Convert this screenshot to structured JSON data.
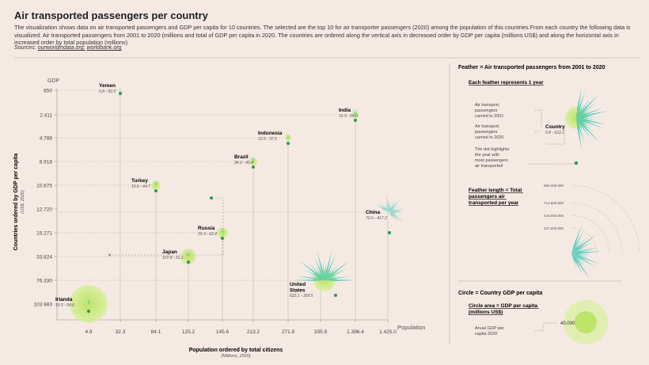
{
  "header": {
    "title": "Air transported passengers per country",
    "description": "The visualization shows data on air transported passengers and GDP per capita for 10 countries. The selected are the top 10 for air transporter passengers (2020) among the population of this countries.From each country the following data is visualized: Air transported passengers from 2001 to 2020 (millions and total of GDP per capita in 2020. The countries are ordered along the vertical axis in decreased order by GDP per capita (millions US$) and along the horizontal axis in  increased order by total population (millions)",
    "sources_label": "Sources:",
    "source_1": "ourworldindata.org;",
    "source_2": "worldbank.org"
  },
  "chart_data": {
    "type": "scatter",
    "title": "Air transported passengers per country",
    "xlabel": "Population ordered by total citizens",
    "xlabel_sub": "(Millions, 2020)",
    "x_axis_end_label": "Population",
    "ylabel": "Countries ordered by GDP per capita",
    "ylabel_sub": "(US$, 2020)",
    "y_axis_top_label": "GDP",
    "x_ticks": [
      "4.9",
      "32.3",
      "84.1",
      "125.2",
      "145.6",
      "213.2",
      "271.9",
      "335.9",
      "1.396.4",
      "1.425.0"
    ],
    "y_ticks": [
      "650",
      "2.411",
      "4.788",
      "8.918",
      "10.675",
      "12.720",
      "15.271",
      "33.824",
      "76.330",
      "103.983"
    ],
    "points": [
      {
        "country": "Yemen",
        "range": "0.8 - 52.0",
        "x_rank": 1,
        "y_rank": 0
      },
      {
        "country": "India",
        "range": "16.9 - 69.0",
        "x_rank": 8,
        "y_rank": 1
      },
      {
        "country": "Indonesia",
        "range": "12.5 - 37.5",
        "x_rank": 6,
        "y_rank": 2
      },
      {
        "country": "Brazil",
        "range": "34.2 - 45.4",
        "x_rank": 5,
        "y_rank": 3
      },
      {
        "country": "Turkey",
        "range": "10.6 - 44.7",
        "x_rank": 2,
        "y_rank": 4
      },
      {
        "country": "China",
        "range": "72.6 - 417.2",
        "x_rank": 9,
        "y_rank": 5
      },
      {
        "country": "Russia",
        "range": "20.3 - 62.4",
        "x_rank": 4,
        "y_rank": 6
      },
      {
        "country": "Japan",
        "range": "107.8 - 51.1",
        "x_rank": 3,
        "y_rank": 7
      },
      {
        "country": "United States",
        "range": "622.1 - 369.5",
        "x_rank": 7,
        "y_rank": 8
      },
      {
        "country": "Irlanda",
        "range": "15.5 - 54.6",
        "x_rank": 0,
        "y_rank": 9
      }
    ]
  },
  "legend": {
    "feather_title": "Feather = Air transported passengers from 2001  to 2020",
    "feather_sub": "Each feather represents 1 year",
    "note_2001": [
      "Air transport,",
      "passengers",
      "carried in 2001"
    ],
    "note_2020": [
      "Air transport,",
      "passengers",
      "carried in 2020"
    ],
    "note_dot": [
      "The dot highlights",
      "the year with",
      "most passengers",
      "air transported"
    ],
    "country_label": "Country",
    "country_range": "0.8 - 622.1",
    "length_title": [
      "Feather length = Total",
      "passengers air",
      "transported per year"
    ],
    "length_ticks": [
      "950.000.000",
      "712.500.000",
      "415.000.000",
      "237.500.000"
    ],
    "circle_title": "Circle = Country  GDP per capita",
    "circle_sub": [
      "Circle area = GDP per capita",
      "(millions US$)"
    ],
    "circle_note": [
      "Anual GDP per",
      "capita 2020"
    ],
    "circle_value": "40.000"
  },
  "colors": {
    "background": "#f5e9e3",
    "feather": "#2ec4b6",
    "circle": "#c5e87a",
    "dot": "#1e9c62",
    "axis": "#9a8f8a"
  }
}
